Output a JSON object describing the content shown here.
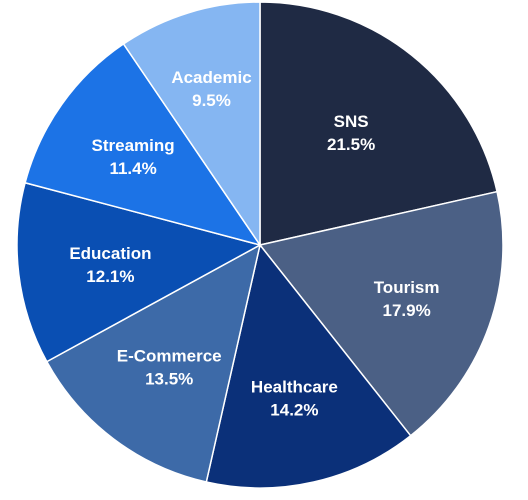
{
  "chart_data": {
    "type": "pie",
    "title": "",
    "slices": [
      {
        "label": "SNS",
        "value": 21.5,
        "value_label": "21.5%",
        "color": "#1f2a44"
      },
      {
        "label": "Tourism",
        "value": 17.9,
        "value_label": "17.9%",
        "color": "#4b6085"
      },
      {
        "label": "Healthcare",
        "value": 14.2,
        "value_label": "14.2%",
        "color": "#0b3079"
      },
      {
        "label": "E-Commerce",
        "value": 13.5,
        "value_label": "13.5%",
        "color": "#3d6aa8"
      },
      {
        "label": "Education",
        "value": 12.1,
        "value_label": "12.1%",
        "color": "#0a4fb3"
      },
      {
        "label": "Streaming",
        "value": 11.4,
        "value_label": "11.4%",
        "color": "#1c73e6"
      },
      {
        "label": "Academic",
        "value": 9.5,
        "value_label": "9.5%",
        "color": "#85b6f2"
      }
    ],
    "start_angle": "12 o'clock",
    "direction": "clockwise",
    "legend": "none",
    "labels_inside_slices": true
  }
}
